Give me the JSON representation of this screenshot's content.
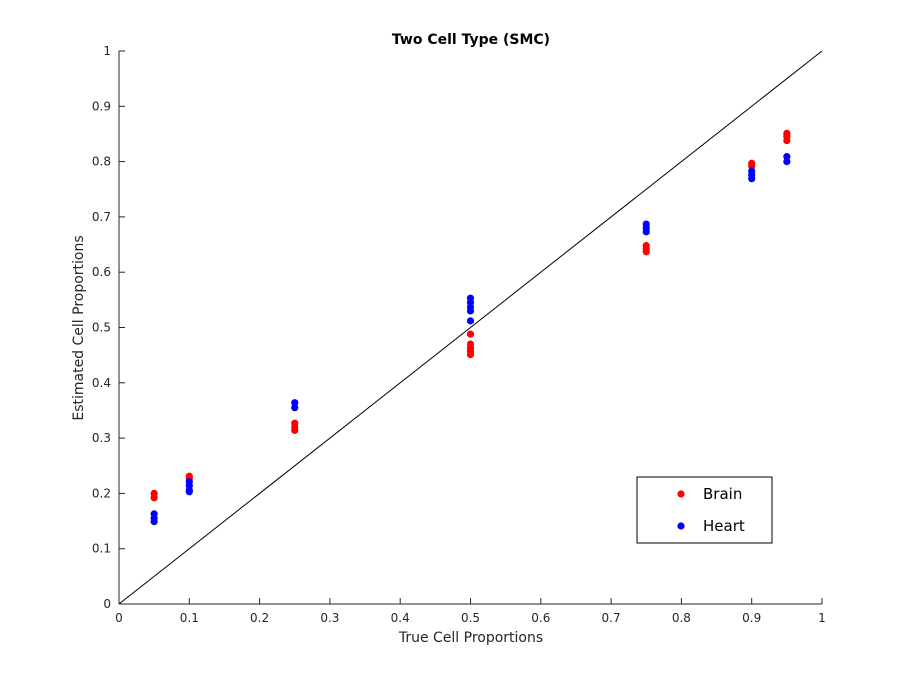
{
  "chart_data": {
    "type": "scatter",
    "title": "Two Cell Type (SMC)",
    "xlabel": "True Cell Proportions",
    "ylabel": "Estimated Cell Proportions",
    "xlim": [
      0,
      1
    ],
    "ylim": [
      0,
      1
    ],
    "xticks": [
      "0",
      "0.1",
      "0.2",
      "0.3",
      "0.4",
      "0.5",
      "0.6",
      "0.7",
      "0.8",
      "0.9",
      "1"
    ],
    "yticks": [
      "0",
      "0.1",
      "0.2",
      "0.3",
      "0.4",
      "0.5",
      "0.6",
      "0.7",
      "0.8",
      "0.9",
      "1"
    ],
    "grid": false,
    "legend_position": "bottom-right",
    "reference_line": {
      "from": [
        0,
        0
      ],
      "to": [
        1,
        1
      ],
      "color": "#000000"
    },
    "series": [
      {
        "name": "Brain",
        "color": "#ff0000",
        "points": [
          [
            0.05,
            0.2
          ],
          [
            0.05,
            0.192
          ],
          [
            0.1,
            0.231
          ],
          [
            0.1,
            0.226
          ],
          [
            0.25,
            0.327
          ],
          [
            0.25,
            0.32
          ],
          [
            0.25,
            0.314
          ],
          [
            0.5,
            0.488
          ],
          [
            0.5,
            0.47
          ],
          [
            0.5,
            0.463
          ],
          [
            0.5,
            0.457
          ],
          [
            0.5,
            0.451
          ],
          [
            0.75,
            0.648
          ],
          [
            0.75,
            0.642
          ],
          [
            0.75,
            0.637
          ],
          [
            0.9,
            0.797
          ],
          [
            0.9,
            0.792
          ],
          [
            0.95,
            0.851
          ],
          [
            0.95,
            0.845
          ],
          [
            0.95,
            0.838
          ]
        ]
      },
      {
        "name": "Heart",
        "color": "#0000ff",
        "points": [
          [
            0.05,
            0.163
          ],
          [
            0.05,
            0.155
          ],
          [
            0.05,
            0.149
          ],
          [
            0.1,
            0.221
          ],
          [
            0.1,
            0.214
          ],
          [
            0.1,
            0.206
          ],
          [
            0.1,
            0.203
          ],
          [
            0.25,
            0.364
          ],
          [
            0.25,
            0.355
          ],
          [
            0.5,
            0.553
          ],
          [
            0.5,
            0.545
          ],
          [
            0.5,
            0.537
          ],
          [
            0.5,
            0.53
          ],
          [
            0.5,
            0.512
          ],
          [
            0.75,
            0.687
          ],
          [
            0.75,
            0.68
          ],
          [
            0.75,
            0.673
          ],
          [
            0.9,
            0.783
          ],
          [
            0.9,
            0.776
          ],
          [
            0.9,
            0.769
          ],
          [
            0.95,
            0.809
          ],
          [
            0.95,
            0.8
          ]
        ]
      }
    ]
  }
}
